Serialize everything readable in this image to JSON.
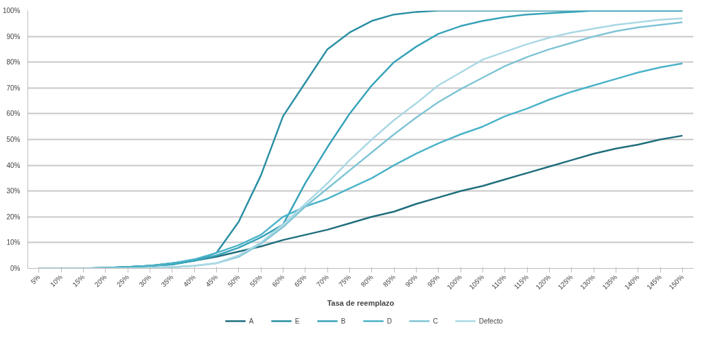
{
  "chart_data": {
    "type": "line",
    "xlabel": "Tasa de reemplazo",
    "categories": [
      "5%",
      "10%",
      "15%",
      "20%",
      "25%",
      "30%",
      "35%",
      "40%",
      "45%",
      "50%",
      "55%",
      "60%",
      "65%",
      "70%",
      "75%",
      "80%",
      "85%",
      "90%",
      "95%",
      "100%",
      "105%",
      "110%",
      "115%",
      "120%",
      "125%",
      "130%",
      "135%",
      "140%",
      "145%",
      "150%"
    ],
    "series": [
      {
        "name": "A",
        "color": "#1f6e7d",
        "values": [
          0,
          0,
          0,
          0.2,
          0.5,
          1,
          2,
          3,
          4.5,
          6.5,
          8.5,
          11,
          13,
          15,
          17.5,
          20,
          22,
          25,
          27.5,
          30,
          32,
          34.5,
          37,
          39.5,
          42,
          44.5,
          46.5,
          48,
          50,
          51.5
        ]
      },
      {
        "name": "E",
        "color": "#2a8fa3",
        "values": [
          0,
          0,
          0,
          0.2,
          0.5,
          1,
          1.5,
          3,
          6,
          18,
          36,
          59,
          72,
          85,
          91.5,
          96,
          98.5,
          99.5,
          100,
          100,
          100,
          100,
          100,
          100,
          100,
          100,
          100,
          100,
          100,
          100
        ]
      },
      {
        "name": "B",
        "color": "#37a3b9",
        "values": [
          0,
          0,
          0,
          0.2,
          0.5,
          1,
          1.5,
          3,
          5,
          8,
          12,
          17,
          33,
          47,
          60,
          71,
          80,
          86,
          91,
          94,
          96,
          97.5,
          98.5,
          99,
          99.5,
          100,
          100,
          100,
          100,
          100
        ]
      },
      {
        "name": "D",
        "color": "#4bb3c9",
        "values": [
          0,
          0,
          0,
          0.2,
          0.5,
          1,
          2,
          3.5,
          6,
          9,
          13,
          20,
          24,
          27,
          31,
          35,
          40,
          44.5,
          48.5,
          52,
          55,
          59,
          62,
          65.5,
          68.5,
          71,
          73.5,
          76,
          78,
          79.5
        ]
      },
      {
        "name": "C",
        "color": "#7fc4d5",
        "values": [
          0,
          0,
          0,
          0,
          0,
          0.2,
          0.5,
          1,
          2,
          4.5,
          9.5,
          16,
          24,
          31,
          38,
          45,
          52,
          58.5,
          64.5,
          69.5,
          74,
          78.5,
          82,
          85,
          87.5,
          90,
          92,
          93.5,
          94.5,
          95.5
        ]
      },
      {
        "name": "Defecto",
        "color": "#aad8e4",
        "values": [
          0,
          0,
          0,
          0,
          0,
          0.2,
          0.5,
          1,
          2,
          5,
          10,
          17,
          25,
          33,
          42,
          50,
          57.5,
          64,
          71,
          76,
          81,
          84,
          87,
          89.5,
          91.5,
          93,
          94.5,
          95.5,
          96.5,
          97
        ]
      }
    ],
    "ylim": [
      0,
      100
    ],
    "yticks": [
      {
        "value": 0,
        "label": "0%"
      },
      {
        "value": 10,
        "label": "10%"
      },
      {
        "value": 20,
        "label": "20%"
      },
      {
        "value": 30,
        "label": "30%"
      },
      {
        "value": 40,
        "label": "40%"
      },
      {
        "value": 50,
        "label": "50%"
      },
      {
        "value": 60,
        "label": "60%"
      },
      {
        "value": 70,
        "label": "70%"
      },
      {
        "value": 80,
        "label": "80%"
      },
      {
        "value": 90,
        "label": "90%"
      },
      {
        "value": 100,
        "label": "100%"
      }
    ],
    "grid": "y",
    "legend": "bottom"
  }
}
